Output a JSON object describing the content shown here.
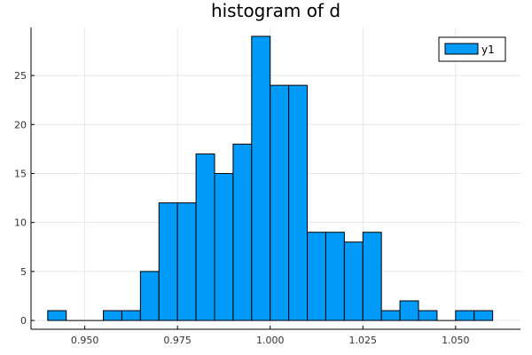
{
  "chart_data": {
    "type": "bar",
    "title": "histogram of d",
    "xlabel": "",
    "ylabel": "",
    "bin_width": 0.005,
    "bins": [
      {
        "x0": 0.94,
        "x1": 0.945,
        "count": 1
      },
      {
        "x0": 0.945,
        "x1": 0.95,
        "count": 0
      },
      {
        "x0": 0.95,
        "x1": 0.955,
        "count": 0
      },
      {
        "x0": 0.955,
        "x1": 0.96,
        "count": 1
      },
      {
        "x0": 0.96,
        "x1": 0.965,
        "count": 1
      },
      {
        "x0": 0.965,
        "x1": 0.97,
        "count": 5
      },
      {
        "x0": 0.97,
        "x1": 0.975,
        "count": 12
      },
      {
        "x0": 0.975,
        "x1": 0.98,
        "count": 12
      },
      {
        "x0": 0.98,
        "x1": 0.985,
        "count": 17
      },
      {
        "x0": 0.985,
        "x1": 0.99,
        "count": 15
      },
      {
        "x0": 0.99,
        "x1": 0.995,
        "count": 18
      },
      {
        "x0": 0.995,
        "x1": 1.0,
        "count": 29
      },
      {
        "x0": 1.0,
        "x1": 1.005,
        "count": 24
      },
      {
        "x0": 1.005,
        "x1": 1.01,
        "count": 24
      },
      {
        "x0": 1.01,
        "x1": 1.015,
        "count": 9
      },
      {
        "x0": 1.015,
        "x1": 1.02,
        "count": 9
      },
      {
        "x0": 1.02,
        "x1": 1.025,
        "count": 8
      },
      {
        "x0": 1.025,
        "x1": 1.03,
        "count": 9
      },
      {
        "x0": 1.03,
        "x1": 1.035,
        "count": 1
      },
      {
        "x0": 1.035,
        "x1": 1.04,
        "count": 2
      },
      {
        "x0": 1.04,
        "x1": 1.045,
        "count": 1
      },
      {
        "x0": 1.045,
        "x1": 1.05,
        "count": 0
      },
      {
        "x0": 1.05,
        "x1": 1.055,
        "count": 1
      },
      {
        "x0": 1.055,
        "x1": 1.06,
        "count": 1
      }
    ],
    "xlim": [
      0.9355,
      1.0675
    ],
    "ylim": [
      -0.9,
      29.9
    ],
    "xticks": [
      0.95,
      0.975,
      1.0,
      1.025,
      1.05
    ],
    "xtick_labels": [
      "0.950",
      "0.975",
      "1.000",
      "1.025",
      "1.050"
    ],
    "yticks": [
      0,
      5,
      10,
      15,
      20,
      25
    ],
    "ytick_labels": [
      "0",
      "5",
      "10",
      "15",
      "20",
      "25"
    ],
    "grid": true,
    "legend": {
      "placement": "top-right",
      "entries": [
        {
          "name": "y1",
          "color": "#009af9"
        }
      ]
    },
    "series": [
      {
        "name": "y1",
        "color": "#009af9"
      }
    ]
  }
}
